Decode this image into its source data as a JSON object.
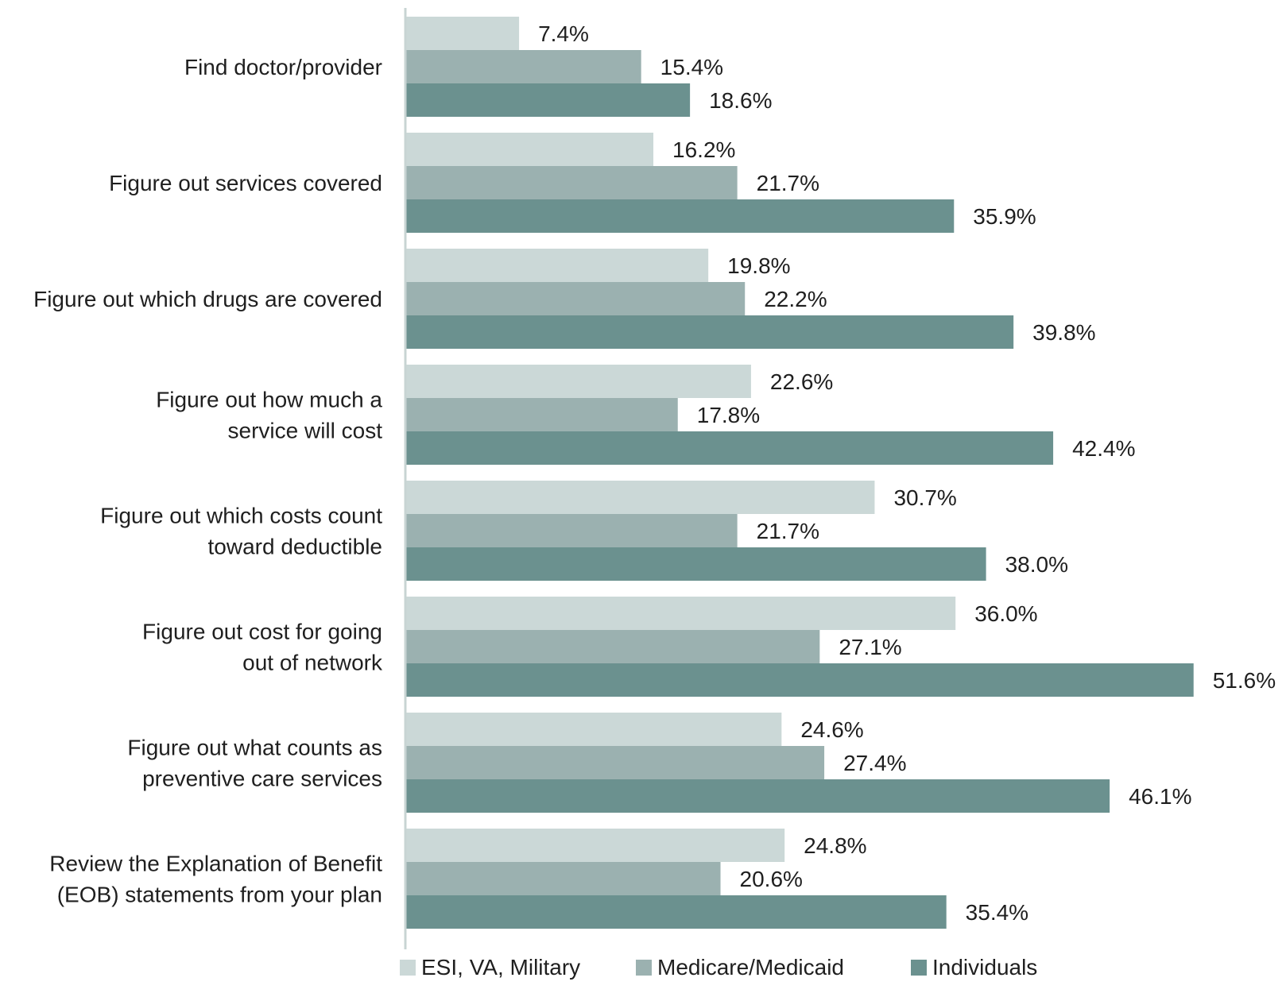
{
  "chart_data": {
    "type": "bar",
    "orientation": "horizontal",
    "title": "",
    "xlabel": "",
    "ylabel": "",
    "xlim": [
      0,
      51.6
    ],
    "grid": false,
    "legend_position": "bottom",
    "value_format": "{v}%",
    "categories": [
      [
        "Find doctor/provider"
      ],
      [
        "Figure out services covered"
      ],
      [
        "Figure out which drugs are covered"
      ],
      [
        "Figure out how much a",
        "service will cost"
      ],
      [
        "Figure out which costs count",
        "toward deductible"
      ],
      [
        "Figure out cost for going",
        "out of network"
      ],
      [
        "Figure out what counts as",
        "preventive care services"
      ],
      [
        "Review the Explanation of Benefit",
        "(EOB) statements from your plan"
      ]
    ],
    "series": [
      {
        "name": "ESI, VA, Military",
        "color": "#cbd8d7",
        "values": [
          7.4,
          16.2,
          19.8,
          22.6,
          30.7,
          36.0,
          24.6,
          24.8
        ],
        "labels": [
          "7.4%",
          "16.2%",
          "19.8%",
          "22.6%",
          "30.7%",
          "36.0%",
          "24.6%",
          "24.8%"
        ]
      },
      {
        "name": "Medicare/Medicaid",
        "color": "#9bb1b0",
        "values": [
          15.4,
          21.7,
          22.2,
          17.8,
          21.7,
          27.1,
          27.4,
          20.6
        ],
        "labels": [
          "15.4%",
          "21.7%",
          "22.2%",
          "17.8%",
          "21.7%",
          "27.1%",
          "27.4%",
          "20.6%"
        ]
      },
      {
        "name": "Individuals",
        "color": "#6b918f",
        "values": [
          18.6,
          35.9,
          39.8,
          42.4,
          38.0,
          51.6,
          46.1,
          35.4
        ],
        "labels": [
          "18.6%",
          "35.9%",
          "39.8%",
          "42.4%",
          "38.0%",
          "51.6%",
          "46.1%",
          "35.4%"
        ]
      }
    ],
    "axis_color": "#c8d4d3"
  }
}
